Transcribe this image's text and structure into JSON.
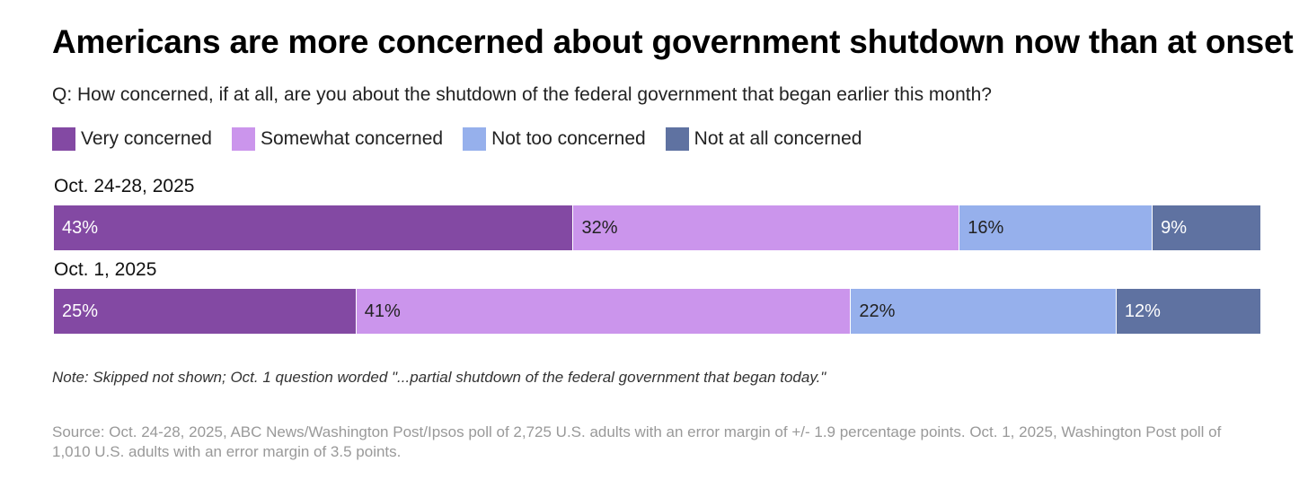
{
  "chart_data": {
    "type": "bar",
    "orientation": "horizontal",
    "stacked": true,
    "title": "Americans are more concerned about government shutdown now than at onset",
    "subtitle": "Q: How concerned, if at all, are you about the shutdown of the federal government that began earlier this month?",
    "categories": [
      "Oct. 24-28, 2025",
      "Oct. 1, 2025"
    ],
    "series": [
      {
        "name": "Very concerned",
        "color": "#8349a3",
        "text_color": "#ffffff",
        "values": [
          43,
          25
        ],
        "labels": [
          "43%",
          "25%"
        ]
      },
      {
        "name": "Somewhat concerned",
        "color": "#cb95ec",
        "text_color": "#222222",
        "values": [
          32,
          41
        ],
        "labels": [
          "32%",
          "41%"
        ]
      },
      {
        "name": "Not too concerned",
        "color": "#96b0ec",
        "text_color": "#222222",
        "values": [
          16,
          22
        ],
        "labels": [
          "16%",
          "22%"
        ]
      },
      {
        "name": "Not at all concerned",
        "color": "#5f72a1",
        "text_color": "#ffffff",
        "values": [
          9,
          12
        ],
        "labels": [
          "9%",
          "12%"
        ]
      }
    ],
    "xlim": [
      0,
      100
    ],
    "legend_position": "top-left",
    "note": "Note: Skipped not shown; Oct. 1 question worded \"...partial shutdown of the federal government that began today.\"",
    "source": "Source: Oct. 24-28, 2025, ABC News/Washington Post/Ipsos poll of 2,725 U.S. adults with an error margin of +/- 1.9 percentage points. Oct. 1, 2025, Washington Post poll of 1,010 U.S. adults with an error margin of 3.5 points."
  }
}
